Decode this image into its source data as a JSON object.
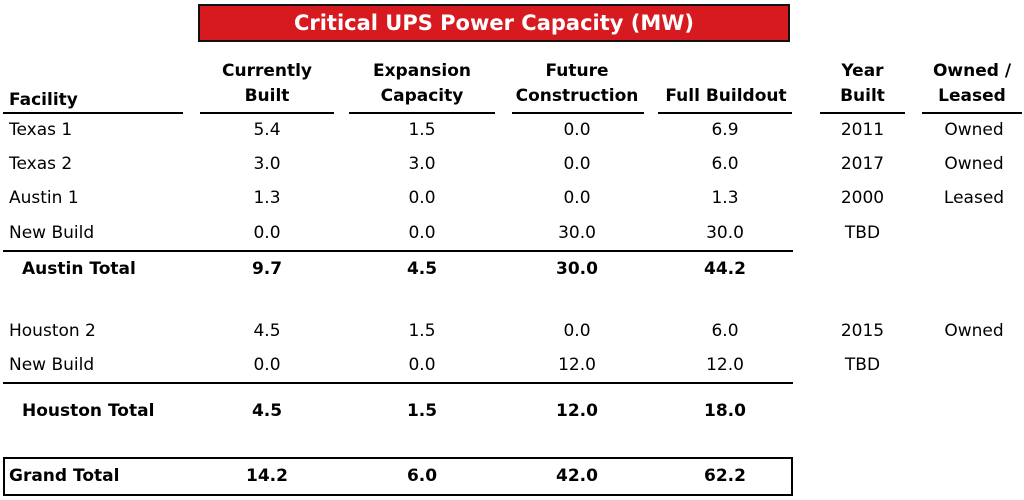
{
  "title": "Critical UPS Power Capacity (MW)",
  "headers": {
    "facility": "Facility",
    "currently_built": "Currently\nBuilt",
    "expansion": "Expansion\nCapacity",
    "future": "Future\nConstruction",
    "full": "Full Buildout",
    "year": "Year\nBuilt",
    "owned": "Owned /\nLeased"
  },
  "chart_data": {
    "type": "table",
    "columns": [
      "Facility",
      "Currently Built",
      "Expansion Capacity",
      "Future Construction",
      "Full Buildout",
      "Year Built",
      "Owned / Leased"
    ],
    "rows": [
      {
        "facility": "Texas 1",
        "built": "5.4",
        "expansion": "1.5",
        "future": "0.0",
        "full": "6.9",
        "year": "2011",
        "owned": "Owned"
      },
      {
        "facility": "Texas 2",
        "built": "3.0",
        "expansion": "3.0",
        "future": "0.0",
        "full": "6.0",
        "year": "2017",
        "owned": "Owned"
      },
      {
        "facility": "Austin 1",
        "built": "1.3",
        "expansion": "0.0",
        "future": "0.0",
        "full": "1.3",
        "year": "2000",
        "owned": "Leased"
      },
      {
        "facility": "New Build",
        "built": "0.0",
        "expansion": "0.0",
        "future": "30.0",
        "full": "30.0",
        "year": "TBD",
        "owned": ""
      },
      {
        "facility": "Austin Total",
        "built": "9.7",
        "expansion": "4.5",
        "future": "30.0",
        "full": "44.2",
        "year": "",
        "owned": ""
      },
      {
        "facility": "Houston 2",
        "built": "4.5",
        "expansion": "1.5",
        "future": "0.0",
        "full": "6.0",
        "year": "2015",
        "owned": "Owned"
      },
      {
        "facility": "New Build",
        "built": "0.0",
        "expansion": "0.0",
        "future": "12.0",
        "full": "12.0",
        "year": "TBD",
        "owned": ""
      },
      {
        "facility": "Houston Total",
        "built": "4.5",
        "expansion": "1.5",
        "future": "12.0",
        "full": "18.0",
        "year": "",
        "owned": ""
      },
      {
        "facility": "Grand Total",
        "built": "14.2",
        "expansion": "6.0",
        "future": "42.0",
        "full": "62.2",
        "year": "",
        "owned": ""
      }
    ]
  }
}
